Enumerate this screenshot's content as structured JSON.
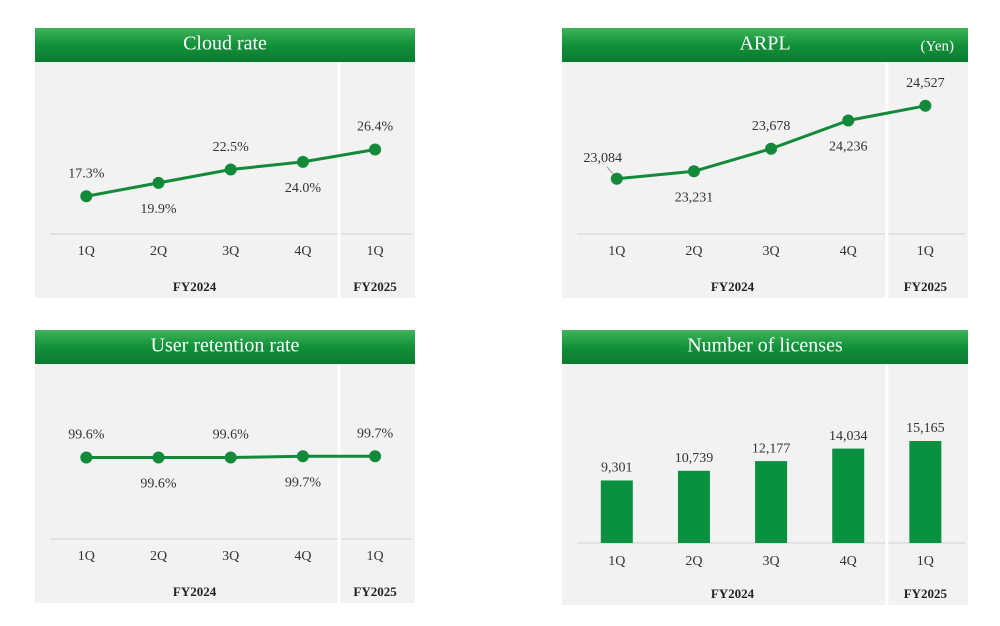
{
  "chart_data": [
    {
      "type": "line",
      "title": "Cloud rate",
      "color": "#138a3a",
      "categories": [
        "1Q",
        "2Q",
        "3Q",
        "4Q",
        "1Q"
      ],
      "x_groups": [
        {
          "label": "FY2024",
          "count": 4
        },
        {
          "label": "FY2025",
          "count": 1
        }
      ],
      "values": [
        17.3,
        19.9,
        22.5,
        24,
        26.4
      ],
      "value_labels": [
        "17.3%",
        "19.9%",
        "22.5%",
        "24.0%",
        "26.4%"
      ]
    },
    {
      "type": "line",
      "title": "ARPL",
      "subtitle": "(Yen)",
      "color": "#138a3a",
      "categories": [
        "1Q",
        "2Q",
        "3Q",
        "4Q",
        "1Q"
      ],
      "x_groups": [
        {
          "label": "FY2024",
          "count": 4
        },
        {
          "label": "FY2025",
          "count": 1
        }
      ],
      "values": [
        23084,
        23231,
        23678,
        24236,
        24527
      ],
      "value_labels": [
        "23,084",
        "23,231",
        "23,678",
        "24,236",
        "24,527"
      ]
    },
    {
      "type": "line",
      "title": "User retention rate",
      "color": "#138a3a",
      "categories": [
        "1Q",
        "2Q",
        "3Q",
        "4Q",
        "1Q"
      ],
      "x_groups": [
        {
          "label": "FY2024",
          "count": 4
        },
        {
          "label": "FY2025",
          "count": 1
        }
      ],
      "values": [
        99.6,
        99.6,
        99.6,
        99.7,
        99.7
      ],
      "value_labels": [
        "99.6%",
        "99.6%",
        "99.6%",
        "99.7%",
        "99.7%"
      ]
    },
    {
      "type": "bar",
      "title": "Number of licenses",
      "color": "#0a9140",
      "categories": [
        "1Q",
        "2Q",
        "3Q",
        "4Q",
        "1Q"
      ],
      "x_groups": [
        {
          "label": "FY2024",
          "count": 4
        },
        {
          "label": "FY2025",
          "count": 1
        }
      ],
      "values": [
        9301,
        10739,
        12177,
        14034,
        15165
      ],
      "value_labels": [
        "9,301",
        "10,739",
        "12,177",
        "14,034",
        "15,165"
      ]
    }
  ]
}
